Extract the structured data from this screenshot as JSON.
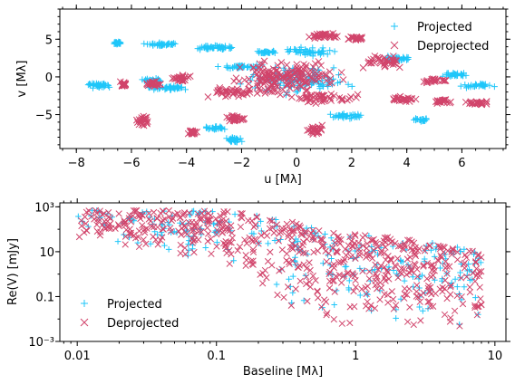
{
  "chart_data": [
    {
      "type": "scatter",
      "title": "",
      "xlabel": "u [Mλ]",
      "ylabel": "v [Mλ]",
      "xlim": [
        -8.6,
        7.6
      ],
      "ylim": [
        -9.5,
        9.0
      ],
      "xticks": [
        -8,
        -6,
        -4,
        -2,
        0,
        2,
        4,
        6
      ],
      "xtick_labels": [
        "−8",
        "−6",
        "−4",
        "−2",
        "0",
        "2",
        "4",
        "6"
      ],
      "yticks": [
        -5,
        0,
        5
      ],
      "ytick_labels": [
        "−5",
        "0",
        "5"
      ],
      "legend_position": "top-right",
      "series": [
        {
          "name": "Projected",
          "marker": "plus",
          "color": "#1fc6f9",
          "clusters": [
            {
              "x": -7.2,
              "y": -1.1,
              "dx": 0.6,
              "dy": 0.5,
              "n": 40
            },
            {
              "x": -6.5,
              "y": 4.5,
              "dx": 0.3,
              "dy": 0.3,
              "n": 25
            },
            {
              "x": -5.0,
              "y": 4.3,
              "dx": 0.9,
              "dy": 0.3,
              "n": 40
            },
            {
              "x": -3.0,
              "y": 3.9,
              "dx": 1.0,
              "dy": 0.4,
              "n": 45
            },
            {
              "x": -2.0,
              "y": 1.4,
              "dx": 1.2,
              "dy": 0.4,
              "n": 40
            },
            {
              "x": -1.2,
              "y": 3.3,
              "dx": 0.6,
              "dy": 0.3,
              "n": 25
            },
            {
              "x": -2.3,
              "y": -8.3,
              "dx": 0.4,
              "dy": 0.5,
              "n": 30
            },
            {
              "x": -3.0,
              "y": -6.8,
              "dx": 0.6,
              "dy": 0.3,
              "n": 25
            },
            {
              "x": -4.6,
              "y": -1.4,
              "dx": 1.0,
              "dy": 0.5,
              "n": 40
            },
            {
              "x": -5.3,
              "y": -0.5,
              "dx": 0.5,
              "dy": 0.4,
              "n": 30
            },
            {
              "x": 1.9,
              "y": -5.2,
              "dx": 1.0,
              "dy": 0.4,
              "n": 35
            },
            {
              "x": 4.5,
              "y": -5.7,
              "dx": 0.4,
              "dy": 0.4,
              "n": 25
            },
            {
              "x": 5.8,
              "y": 0.3,
              "dx": 0.7,
              "dy": 0.4,
              "n": 30
            },
            {
              "x": 6.6,
              "y": -1.1,
              "dx": 0.8,
              "dy": 0.4,
              "n": 30
            },
            {
              "x": 3.7,
              "y": 2.4,
              "dx": 0.8,
              "dy": 0.5,
              "n": 35
            },
            {
              "x": 0.4,
              "y": 3.4,
              "dx": 1.5,
              "dy": 0.7,
              "n": 45
            },
            {
              "x": 0.0,
              "y": -0.3,
              "dx": 2.5,
              "dy": 2.5,
              "n": 120
            }
          ]
        },
        {
          "name": "Deprojected",
          "marker": "x",
          "color": "#d1446b",
          "clusters": [
            {
              "x": -6.3,
              "y": -1.0,
              "dx": 0.2,
              "dy": 0.5,
              "n": 20
            },
            {
              "x": -5.2,
              "y": -0.9,
              "dx": 0.3,
              "dy": 0.5,
              "n": 25
            },
            {
              "x": -4.2,
              "y": -0.2,
              "dx": 0.4,
              "dy": 0.7,
              "n": 30
            },
            {
              "x": -5.6,
              "y": -5.8,
              "dx": 0.3,
              "dy": 0.9,
              "n": 25
            },
            {
              "x": -3.8,
              "y": -7.4,
              "dx": 0.3,
              "dy": 0.5,
              "n": 20
            },
            {
              "x": -2.2,
              "y": -5.5,
              "dx": 0.5,
              "dy": 0.7,
              "n": 25
            },
            {
              "x": 0.7,
              "y": -7.0,
              "dx": 0.4,
              "dy": 0.7,
              "n": 25
            },
            {
              "x": 3.2,
              "y": 2.0,
              "dx": 1.0,
              "dy": 1.2,
              "n": 40
            },
            {
              "x": 3.8,
              "y": -3.0,
              "dx": 0.7,
              "dy": 0.6,
              "n": 30
            },
            {
              "x": 5.3,
              "y": -3.2,
              "dx": 0.4,
              "dy": 0.4,
              "n": 20
            },
            {
              "x": 6.6,
              "y": -3.5,
              "dx": 0.6,
              "dy": 0.3,
              "n": 25
            },
            {
              "x": 5.0,
              "y": -0.5,
              "dx": 0.7,
              "dy": 0.4,
              "n": 25
            },
            {
              "x": 1.0,
              "y": 5.5,
              "dx": 0.7,
              "dy": 0.6,
              "n": 30
            },
            {
              "x": 2.2,
              "y": 5.1,
              "dx": 0.5,
              "dy": 0.4,
              "n": 20
            },
            {
              "x": -0.3,
              "y": 0.0,
              "dx": 2.5,
              "dy": 2.8,
              "n": 170
            },
            {
              "x": 0.8,
              "y": -2.8,
              "dx": 1.8,
              "dy": 0.9,
              "n": 50
            },
            {
              "x": -2.3,
              "y": -2.0,
              "dx": 1.2,
              "dy": 0.8,
              "n": 40
            }
          ]
        }
      ]
    },
    {
      "type": "scatter",
      "title": "",
      "xlabel": "Baseline [Mλ]",
      "ylabel": "Re(V) [mJy]",
      "xscale": "log",
      "yscale": "log",
      "xlim": [
        0.0075,
        12
      ],
      "ylim": [
        0.001,
        1500
      ],
      "xticks": [
        0.01,
        0.1,
        1,
        10
      ],
      "xtick_labels": [
        "0.01",
        "0.1",
        "1",
        "10"
      ],
      "yticks": [
        0.001,
        0.1,
        10,
        1000
      ],
      "ytick_labels": [
        "10⁻³",
        "0.1",
        "10",
        "10³"
      ],
      "legend_position": "bottom-left",
      "series": [
        {
          "name": "Projected",
          "marker": "plus",
          "color": "#1fc6f9"
        },
        {
          "name": "Deprojected",
          "marker": "x",
          "color": "#d1446b"
        }
      ],
      "envelope": [
        {
          "b": 0.01,
          "top": 700,
          "bottom": 40
        },
        {
          "b": 0.03,
          "top": 700,
          "bottom": 8
        },
        {
          "b": 0.1,
          "top": 650,
          "bottom": 2
        },
        {
          "b": 0.2,
          "top": 500,
          "bottom": 0.3
        },
        {
          "b": 0.35,
          "top": 250,
          "bottom": 0.02
        },
        {
          "b": 0.7,
          "top": 80,
          "bottom": 0.005
        },
        {
          "b": 2,
          "top": 40,
          "bottom": 0.004
        },
        {
          "b": 5,
          "top": 20,
          "bottom": 0.003
        },
        {
          "b": 8,
          "top": 8,
          "bottom": 0.005
        }
      ]
    }
  ]
}
